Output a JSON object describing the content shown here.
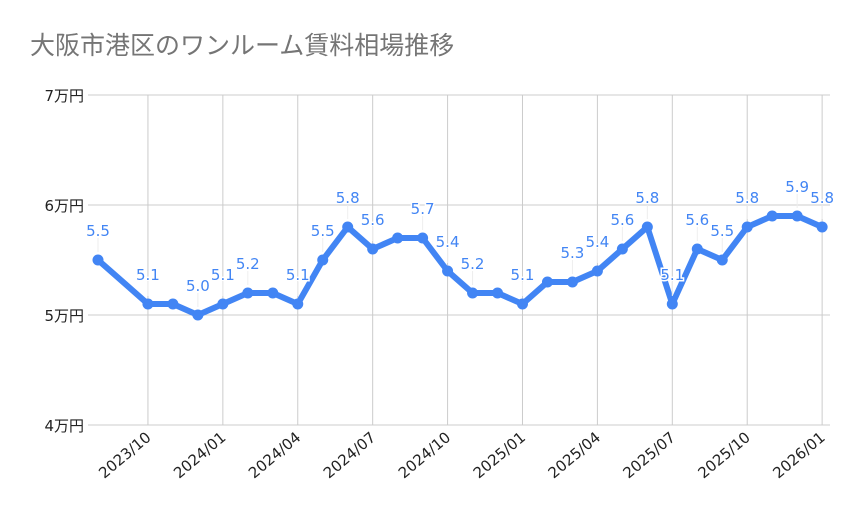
{
  "chart_data": {
    "type": "line",
    "title": "大阪市港区のワンルーム賃料相場推移",
    "xlabel": "",
    "ylabel": "",
    "y_ticks": [
      "4万円",
      "5万円",
      "6万円",
      "7万円"
    ],
    "ylim": [
      4,
      7
    ],
    "x_ticks": [
      "2023/10",
      "2024/01",
      "2024/04",
      "2024/07",
      "2024/10",
      "2025/01",
      "2025/04",
      "2025/07",
      "2025/10",
      "2026/01"
    ],
    "grid": true,
    "legend": "none",
    "color": "#4285f4",
    "points": [
      {
        "x": "2023/08",
        "y": 5.5,
        "label": "5.5"
      },
      {
        "x": "2023/10",
        "y": 5.1,
        "label": "5.1"
      },
      {
        "x": "2023/11",
        "y": 5.1,
        "label": ""
      },
      {
        "x": "2023/12",
        "y": 5.0,
        "label": "5.0"
      },
      {
        "x": "2024/01",
        "y": 5.1,
        "label": "5.1"
      },
      {
        "x": "2024/02",
        "y": 5.2,
        "label": "5.2"
      },
      {
        "x": "2024/03",
        "y": 5.2,
        "label": ""
      },
      {
        "x": "2024/04",
        "y": 5.1,
        "label": "5.1"
      },
      {
        "x": "2024/05",
        "y": 5.5,
        "label": "5.5"
      },
      {
        "x": "2024/06",
        "y": 5.8,
        "label": "5.8"
      },
      {
        "x": "2024/07",
        "y": 5.6,
        "label": "5.6"
      },
      {
        "x": "2024/08",
        "y": 5.7,
        "label": ""
      },
      {
        "x": "2024/09",
        "y": 5.7,
        "label": "5.7"
      },
      {
        "x": "2024/10",
        "y": 5.4,
        "label": "5.4"
      },
      {
        "x": "2024/11",
        "y": 5.2,
        "label": "5.2"
      },
      {
        "x": "2024/12",
        "y": 5.2,
        "label": ""
      },
      {
        "x": "2025/01",
        "y": 5.1,
        "label": "5.1"
      },
      {
        "x": "2025/02",
        "y": 5.3,
        "label": ""
      },
      {
        "x": "2025/03",
        "y": 5.3,
        "label": "5.3"
      },
      {
        "x": "2025/04",
        "y": 5.4,
        "label": "5.4"
      },
      {
        "x": "2025/05",
        "y": 5.6,
        "label": "5.6"
      },
      {
        "x": "2025/06",
        "y": 5.8,
        "label": "5.8"
      },
      {
        "x": "2025/07",
        "y": 5.1,
        "label": "5.1"
      },
      {
        "x": "2025/08",
        "y": 5.6,
        "label": "5.6"
      },
      {
        "x": "2025/09",
        "y": 5.5,
        "label": "5.5"
      },
      {
        "x": "2025/10",
        "y": 5.8,
        "label": "5.8"
      },
      {
        "x": "2025/11",
        "y": 5.9,
        "label": ""
      },
      {
        "x": "2025/12",
        "y": 5.9,
        "label": "5.9"
      },
      {
        "x": "2026/01",
        "y": 5.8,
        "label": "5.8"
      }
    ]
  }
}
